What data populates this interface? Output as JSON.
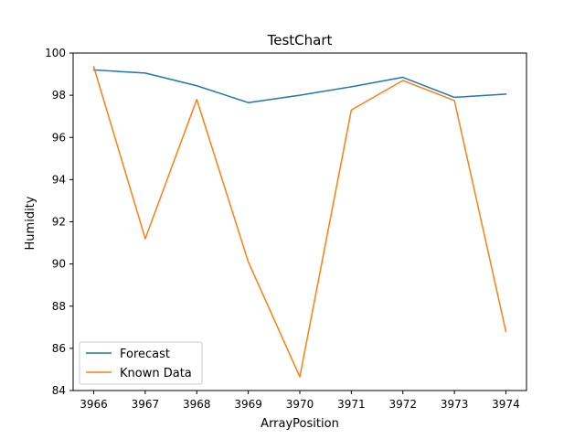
{
  "chart_data": {
    "type": "line",
    "title": "TestChart",
    "xlabel": "ArrayPosition",
    "ylabel": "Humidity",
    "x": [
      3966,
      3967,
      3968,
      3969,
      3970,
      3971,
      3972,
      3973,
      3974
    ],
    "x_ticks": [
      "3966",
      "3967",
      "3968",
      "3969",
      "3970",
      "3971",
      "3972",
      "3973",
      "3974"
    ],
    "y_ticks": [
      "84",
      "86",
      "88",
      "90",
      "92",
      "94",
      "96",
      "98",
      "100"
    ],
    "xlim": [
      3965.6,
      3974.4
    ],
    "ylim": [
      84,
      100
    ],
    "grid": false,
    "legend_position": "lower-left",
    "series": [
      {
        "name": "Forecast",
        "color": "#1f77b4",
        "values": [
          99.2,
          99.05,
          98.45,
          97.65,
          98.0,
          98.4,
          98.85,
          97.9,
          98.05
        ]
      },
      {
        "name": "Known Data",
        "color": "#ff7f0e",
        "values": [
          99.35,
          91.2,
          97.8,
          90.1,
          84.65,
          97.3,
          98.7,
          97.75,
          86.8
        ]
      }
    ]
  }
}
